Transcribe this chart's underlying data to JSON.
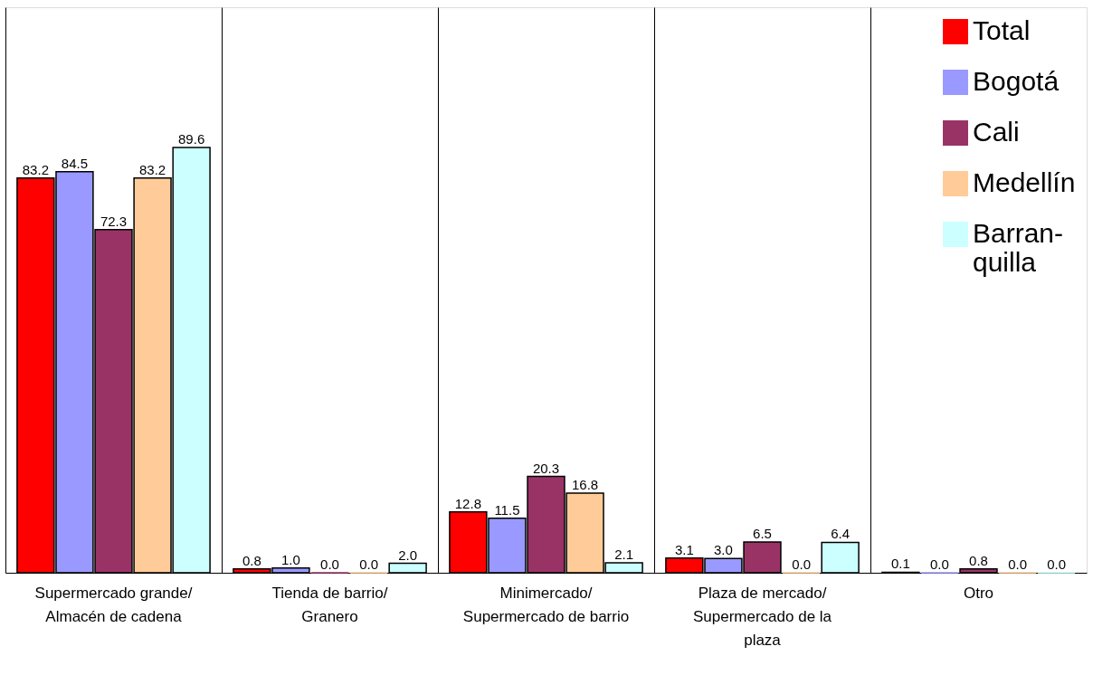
{
  "chart_data": {
    "type": "bar",
    "categories": [
      "Supermercado grande/ Almacén de cadena",
      "Tienda de barrio/ Granero",
      "Minimercado/ Supermercado de barrio",
      "Plaza de mercado/ Supermercado de la plaza",
      "Otro"
    ],
    "series": [
      {
        "name": "Total",
        "color": "#ff0000",
        "values": [
          83.2,
          0.8,
          12.8,
          3.1,
          0.1
        ],
        "value_labels": [
          "83.2",
          "0.8",
          "12.8",
          "3.1",
          "0.1"
        ]
      },
      {
        "name": "Bogotá",
        "color": "#9999ff",
        "values": [
          84.5,
          1.0,
          11.5,
          3.0,
          0.0
        ],
        "value_labels": [
          "84.5",
          "1.0",
          "11.5",
          "3.0",
          "0.0"
        ]
      },
      {
        "name": "Cali",
        "color": "#993366",
        "values": [
          72.3,
          0.0,
          20.3,
          6.5,
          0.8
        ],
        "value_labels": [
          "72.3",
          "0.0",
          "20.3",
          "6.5",
          "0.8"
        ]
      },
      {
        "name": "Medellín",
        "color": "#ffcc99",
        "values": [
          83.2,
          0.0,
          16.8,
          0.0,
          0.0
        ],
        "value_labels": [
          "83.2",
          "0.0",
          "16.8",
          "0.0",
          "0.0"
        ]
      },
      {
        "name": "Barran-quilla",
        "color": "#ccffff",
        "values": [
          89.6,
          2.0,
          2.1,
          6.4,
          0.0
        ],
        "value_labels": [
          "89.6",
          "2.0",
          "2.1",
          "6.4",
          "0.0"
        ]
      }
    ],
    "grid": "x",
    "legend": "top right"
  }
}
